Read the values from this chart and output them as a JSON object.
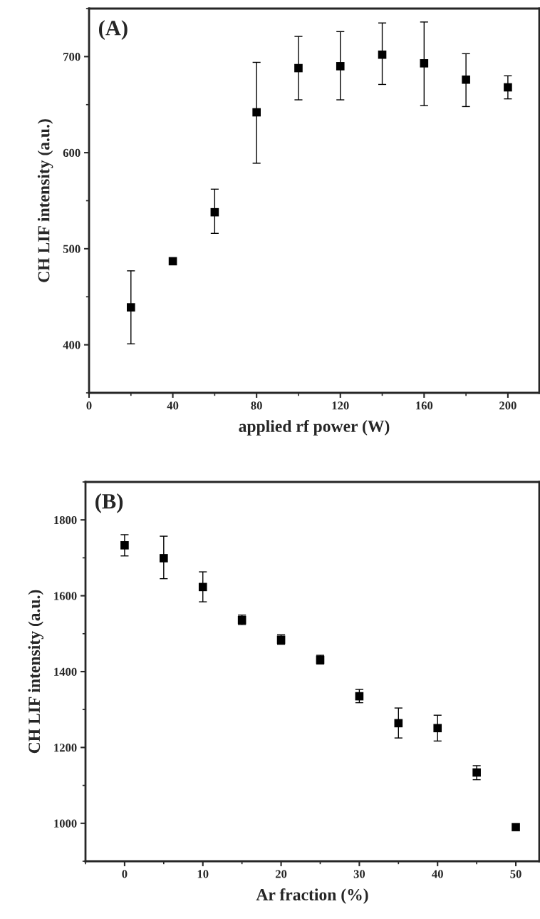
{
  "chart_data": [
    {
      "type": "scatter",
      "xlabel": "applied rf power (W)",
      "ylabel": "CH LIF intensity (a.u.)",
      "annotations": [
        "(A)"
      ],
      "x": [
        20,
        40,
        60,
        80,
        100,
        120,
        140,
        160,
        180,
        200
      ],
      "series": [
        {
          "color": "#000000",
          "values": [
            439,
            487,
            538,
            642,
            688,
            690,
            702,
            693,
            676,
            668
          ],
          "errors": [
            [
              401,
              477
            ],
            null,
            [
              516,
              562
            ],
            [
              589,
              694
            ],
            [
              655,
              721
            ],
            [
              655,
              726
            ],
            [
              671,
              735
            ],
            [
              649,
              736
            ],
            [
              648,
              703
            ],
            [
              656,
              680
            ]
          ]
        }
      ],
      "marker": "square",
      "xlim": [
        0,
        215
      ],
      "xticks": [
        0,
        40,
        80,
        120,
        160,
        200
      ],
      "ylim": [
        350,
        750
      ],
      "yticks": [
        400,
        500,
        600,
        700
      ],
      "grid": false,
      "legend": false
    },
    {
      "type": "scatter",
      "xlabel": "Ar fraction (%)",
      "ylabel": "CH LIF intensity (a.u.)",
      "annotations": [
        "(B)"
      ],
      "x": [
        0,
        5,
        10,
        15,
        20,
        25,
        30,
        35,
        40,
        45,
        50
      ],
      "series": [
        {
          "color": "#000000",
          "values": [
            1733,
            1699,
            1623,
            1536,
            1484,
            1431,
            1335,
            1264,
            1251,
            1134,
            990
          ],
          "errors": [
            [
              1705,
              1761
            ],
            [
              1645,
              1757
            ],
            [
              1584,
              1663
            ],
            [
              1524,
              1549
            ],
            [
              1472,
              1497
            ],
            [
              1420,
              1443
            ],
            [
              1318,
              1353
            ],
            [
              1225,
              1304
            ],
            [
              1217,
              1285
            ],
            [
              1115,
              1152
            ],
            null
          ]
        }
      ],
      "marker": "square",
      "xlim": [
        -5,
        53
      ],
      "xticks": [
        0,
        10,
        20,
        30,
        40,
        50
      ],
      "ylim": [
        900,
        1900
      ],
      "yticks": [
        1000,
        1200,
        1400,
        1600,
        1800
      ],
      "grid": false,
      "legend": false
    }
  ]
}
